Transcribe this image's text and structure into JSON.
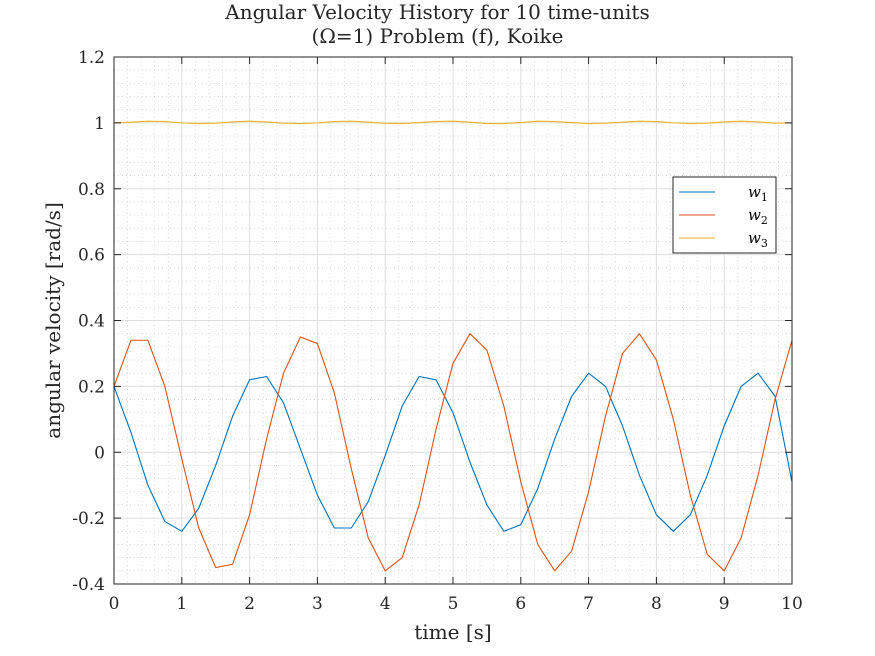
{
  "chart_data": {
    "type": "line",
    "title": [
      "Angular Velocity History for 10 time-units",
      "(Ω=1) Problem (f), Koike"
    ],
    "xlabel": "time [s]",
    "ylabel": "angular velocity [rad/s]",
    "xlim": [
      0,
      10
    ],
    "ylim": [
      -0.4,
      1.2
    ],
    "xticks": [
      0,
      1,
      2,
      3,
      4,
      5,
      6,
      7,
      8,
      9,
      10
    ],
    "xtick_labels": [
      "0",
      "1",
      "2",
      "3",
      "4",
      "5",
      "6",
      "7",
      "8",
      "9",
      "10"
    ],
    "yticks": [
      -0.4,
      -0.2,
      0,
      0.2,
      0.4,
      0.6,
      0.8,
      1.0,
      1.2
    ],
    "ytick_labels": [
      "-0.4",
      "-0.2",
      "0",
      "0.2",
      "0.4",
      "0.6",
      "0.8",
      "1",
      "1.2"
    ],
    "grid": true,
    "minor_grid": true,
    "legend_position": "right",
    "series": [
      {
        "name": "w1",
        "subscript": "1",
        "color": "#0072BD",
        "x": [
          0,
          0.25,
          0.5,
          0.75,
          1.0,
          1.25,
          1.5,
          1.75,
          2.0,
          2.25,
          2.5,
          2.75,
          3.0,
          3.25,
          3.5,
          3.75,
          4.0,
          4.25,
          4.5,
          4.75,
          5.0,
          5.25,
          5.5,
          5.75,
          6.0,
          6.25,
          6.5,
          6.75,
          7.0,
          7.25,
          7.5,
          7.75,
          8.0,
          8.25,
          8.5,
          8.75,
          9.0,
          9.25,
          9.5,
          9.75,
          10.0
        ],
        "y": [
          0.2,
          0.06,
          -0.1,
          -0.21,
          -0.24,
          -0.17,
          -0.04,
          0.11,
          0.22,
          0.23,
          0.15,
          0.01,
          -0.13,
          -0.23,
          -0.23,
          -0.15,
          -0.01,
          0.14,
          0.23,
          0.22,
          0.12,
          -0.03,
          -0.16,
          -0.24,
          -0.22,
          -0.11,
          0.04,
          0.17,
          0.24,
          0.2,
          0.08,
          -0.07,
          -0.19,
          -0.24,
          -0.19,
          -0.07,
          0.08,
          0.2,
          0.24,
          0.17,
          -0.09
        ]
      },
      {
        "name": "w2",
        "subscript": "2",
        "color": "#D95319",
        "x": [
          0,
          0.25,
          0.5,
          0.75,
          1.0,
          1.25,
          1.5,
          1.75,
          2.0,
          2.25,
          2.5,
          2.75,
          3.0,
          3.25,
          3.5,
          3.75,
          4.0,
          4.25,
          4.5,
          4.75,
          5.0,
          5.25,
          5.5,
          5.75,
          6.0,
          6.25,
          6.5,
          6.75,
          7.0,
          7.25,
          7.5,
          7.75,
          8.0,
          8.25,
          8.5,
          8.75,
          9.0,
          9.25,
          9.5,
          9.75,
          10.0
        ],
        "y": [
          0.2,
          0.34,
          0.34,
          0.2,
          -0.02,
          -0.23,
          -0.35,
          -0.34,
          -0.19,
          0.04,
          0.24,
          0.35,
          0.33,
          0.18,
          -0.05,
          -0.26,
          -0.36,
          -0.32,
          -0.16,
          0.07,
          0.27,
          0.36,
          0.31,
          0.14,
          -0.09,
          -0.28,
          -0.36,
          -0.3,
          -0.12,
          0.11,
          0.3,
          0.36,
          0.28,
          0.1,
          -0.13,
          -0.31,
          -0.36,
          -0.26,
          -0.07,
          0.16,
          0.34
        ]
      },
      {
        "name": "w3",
        "subscript": "3",
        "color": "#EDB120",
        "x": [
          0,
          0.25,
          0.5,
          0.75,
          1.0,
          1.25,
          1.5,
          1.75,
          2.0,
          2.25,
          2.5,
          2.75,
          3.0,
          3.25,
          3.5,
          3.75,
          4.0,
          4.25,
          4.5,
          4.75,
          5.0,
          5.25,
          5.5,
          5.75,
          6.0,
          6.25,
          6.5,
          6.75,
          7.0,
          7.25,
          7.5,
          7.75,
          8.0,
          8.25,
          8.5,
          8.75,
          9.0,
          9.25,
          9.5,
          9.75,
          10.0
        ],
        "y": [
          1.0,
          1.002,
          1.005,
          1.004,
          1.0,
          0.998,
          0.999,
          1.003,
          1.005,
          1.003,
          0.999,
          0.998,
          1.0,
          1.004,
          1.005,
          1.002,
          0.999,
          0.998,
          1.001,
          1.004,
          1.005,
          1.002,
          0.998,
          0.998,
          1.001,
          1.005,
          1.004,
          1.001,
          0.998,
          0.999,
          1.002,
          1.005,
          1.004,
          1.0,
          0.998,
          0.999,
          1.003,
          1.005,
          1.003,
          0.999,
          1.0
        ]
      }
    ]
  }
}
